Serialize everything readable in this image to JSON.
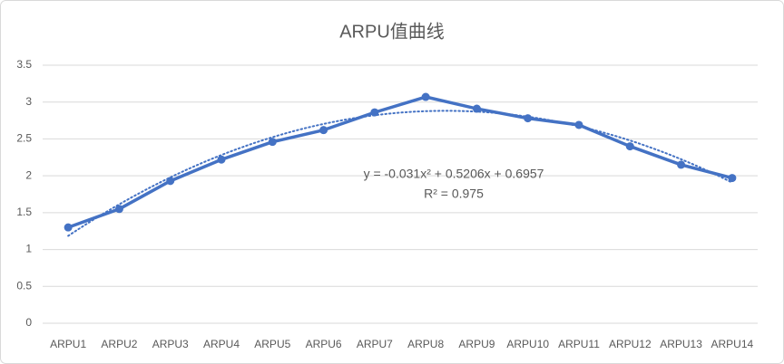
{
  "chart_data": {
    "type": "line",
    "title": "ARPU值曲线",
    "categories": [
      "ARPU1",
      "ARPU2",
      "ARPU3",
      "ARPU4",
      "ARPU5",
      "ARPU6",
      "ARPU7",
      "ARPU8",
      "ARPU9",
      "ARPU10",
      "ARPU11",
      "ARPU12",
      "ARPU13",
      "ARPU14"
    ],
    "series": [
      {
        "color": "#4472c4",
        "values": [
          1.3,
          1.55,
          1.93,
          2.22,
          2.46,
          2.62,
          2.86,
          3.07,
          2.91,
          2.78,
          2.69,
          2.4,
          2.15,
          1.97
        ]
      }
    ],
    "ylim": [
      0,
      3.5
    ],
    "yticks": [
      0,
      0.5,
      1,
      1.5,
      2,
      2.5,
      3,
      3.5
    ],
    "grid": true,
    "trendline": {
      "type": "polynomial",
      "coefficients": [
        -0.031,
        0.5206,
        0.6957
      ],
      "equation": "y = -0.031x² + 0.5206x + 0.6957",
      "r_squared_label": "R² = 0.975"
    }
  }
}
